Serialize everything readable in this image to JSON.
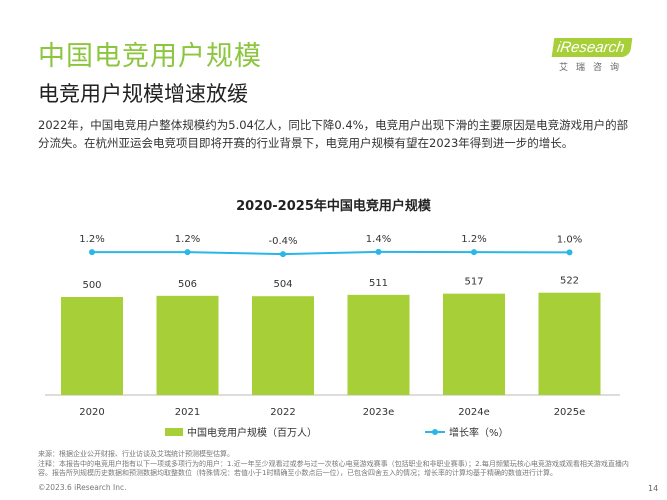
{
  "header": {
    "title": "中国电竞用户规模",
    "subtitle": "电竞用户规模增速放缓",
    "body": "2022年，中国电竞用户整体规模约为5.04亿人，同比下降0.4%，电竞用户出现下滑的主要原因是电竞游戏用户的部分流失。在杭州亚运会电竞项目即将开赛的行业背景下，电竞用户规模有望在2023年得到进一步的增长。"
  },
  "logo": {
    "brand": "iResearch",
    "sub": "艾瑞咨询"
  },
  "chart_data": {
    "type": "bar+line",
    "title": "2020-2025年中国电竞用户规模",
    "categories": [
      "2020",
      "2021",
      "2022",
      "2023e",
      "2024e",
      "2025e"
    ],
    "series": [
      {
        "name": "中国电竞用户规模（百万人）",
        "type": "bar",
        "values": [
          500,
          506,
          504,
          511,
          517,
          522
        ],
        "labels": [
          "500",
          "506",
          "504",
          "511",
          "517",
          "522"
        ],
        "color": "#a6cf38"
      },
      {
        "name": "增长率（%）",
        "type": "line",
        "values": [
          1.2,
          1.2,
          -0.4,
          1.4,
          1.2,
          1.0
        ],
        "labels": [
          "1.2%",
          "1.2%",
          "-0.4%",
          "1.4%",
          "1.2%",
          "1.0%"
        ],
        "color": "#29b6e8"
      }
    ],
    "legend": "bottom"
  },
  "footer": {
    "source": "来源：根据企业公开财报、行业访谈及艾瑞统计预测模型估算。",
    "note": "注释：本报告中的电竞用户指有以下一项或多项行为的用户：1.近一年至少观看过或参与过一次核心电竞游戏赛事（包括职业和非职业赛事）；2.每月频繁玩核心电竞游戏或观看相关游戏直播内容。报告所列规模历史数据和预测数据均取整数位（特殊情况：若值小于1时精确至小数点后一位），已包含四舍五入的情况；增长率的计算均基于精确的数值进行计算。",
    "copyright": "©2023.6 iResearch Inc.",
    "page": "14"
  }
}
